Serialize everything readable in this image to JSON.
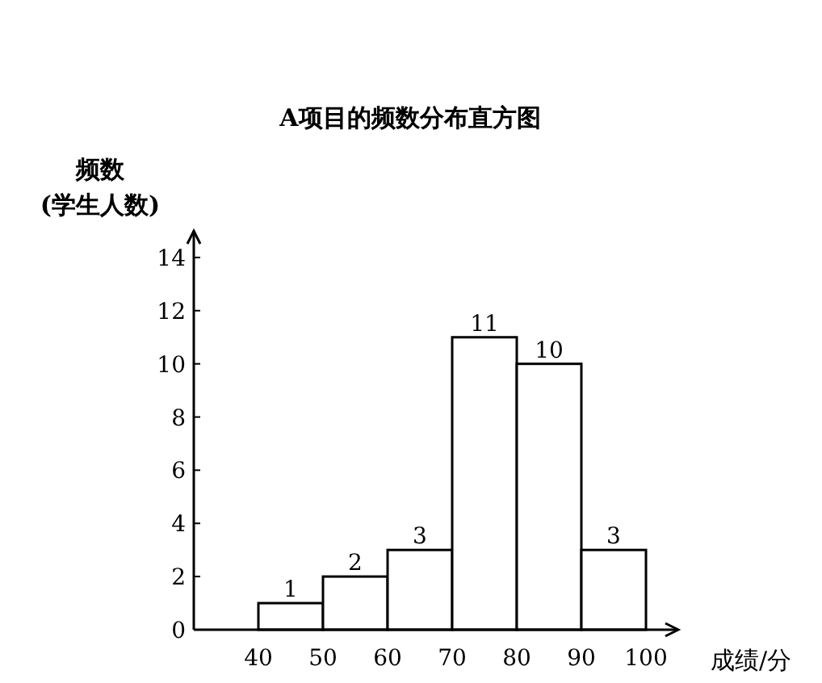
{
  "chart_data": {
    "type": "histogram",
    "title": "A项目的频数分布直方图",
    "xlabel": "成绩/分",
    "ylabel": "频数\n(学生人数)",
    "bins": [
      40,
      50,
      60,
      70,
      80,
      90,
      100
    ],
    "values": [
      1,
      2,
      3,
      11,
      10,
      3
    ],
    "color": "#ffffff",
    "xlim": [
      30,
      105
    ],
    "ylim": [
      0,
      15
    ],
    "xticks": [
      40,
      50,
      60,
      70,
      80,
      90,
      100
    ],
    "yticks": [
      0,
      2,
      4,
      6,
      8,
      10,
      12,
      14
    ],
    "data_labels": true
  }
}
